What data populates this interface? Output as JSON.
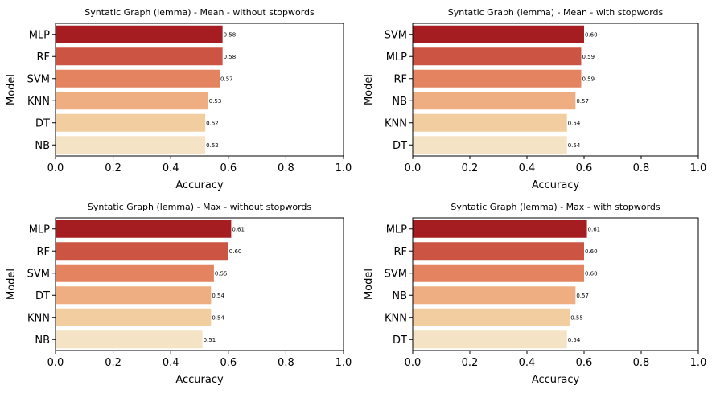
{
  "chart_data": [
    {
      "type": "bar",
      "orientation": "horizontal",
      "title": "Syntatic Graph (lemma) - Mean - without stopwords",
      "xlabel": "Accuracy",
      "ylabel": "Model",
      "xlim": [
        0,
        1
      ],
      "xticks": [
        "0.0",
        "0.2",
        "0.4",
        "0.6",
        "0.8",
        "1.0"
      ],
      "categories": [
        "MLP",
        "RF",
        "SVM",
        "KNN",
        "DT",
        "NB"
      ],
      "values": [
        0.58,
        0.58,
        0.57,
        0.53,
        0.52,
        0.52
      ],
      "value_labels": [
        "0.58",
        "0.58",
        "0.57",
        "0.53",
        "0.52",
        "0.52"
      ]
    },
    {
      "type": "bar",
      "orientation": "horizontal",
      "title": "Syntatic Graph (lemma) - Mean - with stopwords",
      "xlabel": "Accuracy",
      "ylabel": "Model",
      "xlim": [
        0,
        1
      ],
      "xticks": [
        "0.0",
        "0.2",
        "0.4",
        "0.6",
        "0.8",
        "1.0"
      ],
      "categories": [
        "SVM",
        "MLP",
        "RF",
        "NB",
        "KNN",
        "DT"
      ],
      "values": [
        0.6,
        0.59,
        0.59,
        0.57,
        0.54,
        0.54
      ],
      "value_labels": [
        "0.60",
        "0.59",
        "0.59",
        "0.57",
        "0.54",
        "0.54"
      ]
    },
    {
      "type": "bar",
      "orientation": "horizontal",
      "title": "Syntatic Graph (lemma) - Max - without stopwords",
      "xlabel": "Accuracy",
      "ylabel": "Model",
      "xlim": [
        0,
        1
      ],
      "xticks": [
        "0.0",
        "0.2",
        "0.4",
        "0.6",
        "0.8",
        "1.0"
      ],
      "categories": [
        "MLP",
        "RF",
        "SVM",
        "DT",
        "KNN",
        "NB"
      ],
      "values": [
        0.61,
        0.6,
        0.55,
        0.54,
        0.54,
        0.51
      ],
      "value_labels": [
        "0.61",
        "0.60",
        "0.55",
        "0.54",
        "0.54",
        "0.51"
      ]
    },
    {
      "type": "bar",
      "orientation": "horizontal",
      "title": "Syntatic Graph (lemma) - Max - with stopwords",
      "xlabel": "Accuracy",
      "ylabel": "Model",
      "xlim": [
        0,
        1
      ],
      "xticks": [
        "0.0",
        "0.2",
        "0.4",
        "0.6",
        "0.8",
        "1.0"
      ],
      "categories": [
        "MLP",
        "RF",
        "SVM",
        "NB",
        "KNN",
        "DT"
      ],
      "values": [
        0.61,
        0.6,
        0.6,
        0.57,
        0.55,
        0.54
      ],
      "value_labels": [
        "0.61",
        "0.60",
        "0.60",
        "0.57",
        "0.55",
        "0.54"
      ]
    }
  ],
  "palette": [
    "#a51d20",
    "#cb5443",
    "#e4835f",
    "#efae82",
    "#f2cd9f",
    "#f5e3c6"
  ]
}
